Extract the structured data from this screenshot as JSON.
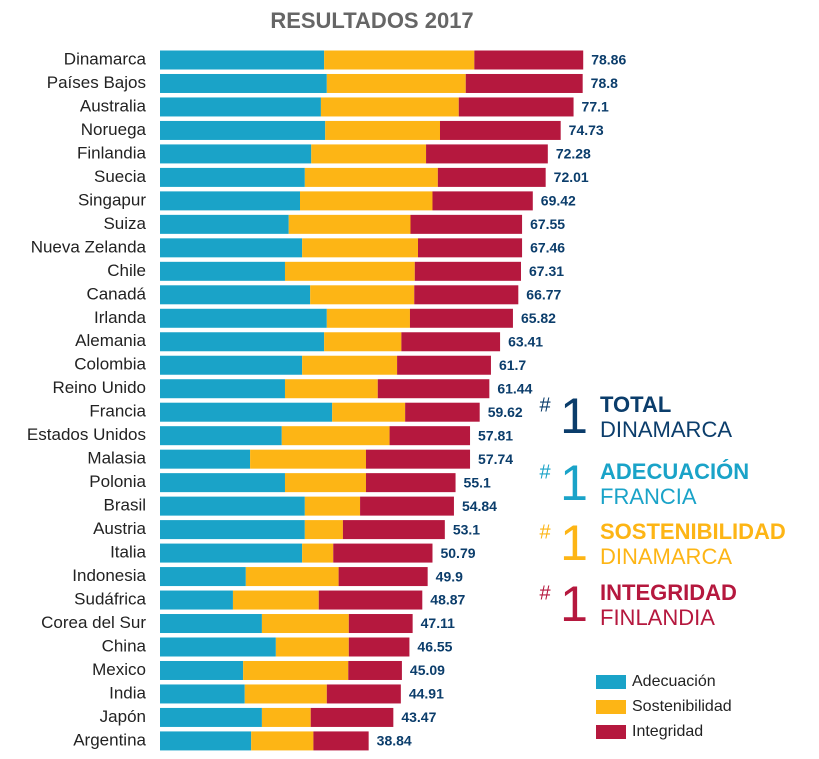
{
  "chart_data": {
    "type": "stacked-bar-horizontal",
    "title": "RESULTADOS 2017",
    "categories": [
      "Dinamarca",
      "Países Bajos",
      "Australia",
      "Noruega",
      "Finlandia",
      "Suecia",
      "Singapur",
      "Suiza",
      "Nueva Zelanda",
      "Chile",
      "Canadá",
      "Irlanda",
      "Alemania",
      "Colombia",
      "Reino Unido",
      "Francia",
      "Estados Unidos",
      "Malasia",
      "Polonia",
      "Brasil",
      "Austria",
      "Italia",
      "Indonesia",
      "Sudáfrica",
      "Corea del Sur",
      "China",
      "Mexico",
      "India",
      "Japón",
      "Argentina"
    ],
    "series": [
      {
        "name": "Adecuación",
        "color": "#1aa3c8",
        "values": [
          30.6,
          31.1,
          30.0,
          30.8,
          28.2,
          27.0,
          26.1,
          24.0,
          26.5,
          23.3,
          28.0,
          31.1,
          30.6,
          26.5,
          23.3,
          32.1,
          22.7,
          16.8,
          23.3,
          27.0,
          27.0,
          26.5,
          16.0,
          13.6,
          19.0,
          21.6,
          15.5,
          15.8,
          19.0,
          17.0
        ]
      },
      {
        "name": "Sostenibilidad",
        "color": "#fdb515",
        "values": [
          28.0,
          25.9,
          25.7,
          21.4,
          21.4,
          24.8,
          24.7,
          22.7,
          21.6,
          24.2,
          19.4,
          15.5,
          14.4,
          17.7,
          17.3,
          13.6,
          20.1,
          21.6,
          15.1,
          10.3,
          7.1,
          5.8,
          17.3,
          16.0,
          16.2,
          13.6,
          19.6,
          15.3,
          9.1,
          11.6
        ]
      },
      {
        "name": "Integridad",
        "color": "#b5183e",
        "values": [
          20.3,
          21.8,
          21.4,
          22.5,
          22.7,
          20.1,
          18.7,
          20.8,
          19.4,
          19.8,
          19.4,
          19.2,
          18.4,
          17.5,
          20.8,
          13.9,
          15.0,
          19.4,
          16.7,
          17.5,
          19.0,
          18.5,
          16.6,
          19.3,
          11.9,
          11.3,
          10.0,
          13.8,
          15.4,
          10.3
        ]
      }
    ],
    "totals": [
      78.86,
      78.8,
      77.1,
      74.73,
      72.28,
      72.01,
      69.42,
      67.55,
      67.46,
      67.31,
      66.77,
      65.82,
      63.41,
      61.7,
      61.44,
      59.62,
      57.81,
      57.74,
      55.1,
      54.84,
      53.1,
      50.79,
      49.9,
      48.87,
      47.11,
      46.55,
      45.09,
      44.91,
      43.47,
      38.84
    ],
    "totals_color": "#0b3d6b",
    "xlim": [
      0,
      78.86
    ],
    "highlights": [
      {
        "hash": "#",
        "rank": "1",
        "title": "TOTAL",
        "country": "DINAMARCA",
        "color": "#0b3d6b"
      },
      {
        "hash": "#",
        "rank": "1",
        "title": "ADECUACIÓN",
        "country": "FRANCIA",
        "color": "#1aa3c8"
      },
      {
        "hash": "#",
        "rank": "1",
        "title": "SOSTENIBILIDAD",
        "country": "DINAMARCA",
        "color": "#fdb515"
      },
      {
        "hash": "#",
        "rank": "1",
        "title": "INTEGRIDAD",
        "country": "FINLANDIA",
        "color": "#b5183e"
      }
    ],
    "legend": "bottom-right"
  }
}
